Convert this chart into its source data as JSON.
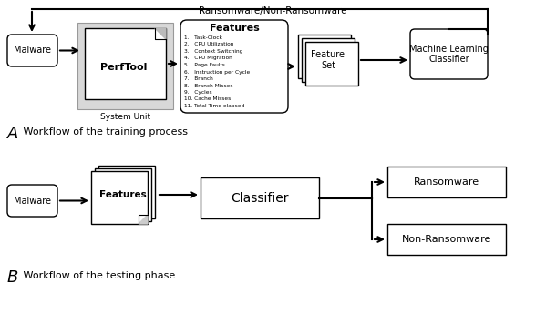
{
  "bg_color": "#ffffff",
  "top_label": "Ransomware/Non-Ransomware",
  "features_list": [
    "1.   Task-Clock",
    "2.   CPU Utilization",
    "3.   Context Switching",
    "4.   CPU Migration",
    "5.   Page Faults",
    "6.   Instruction per Cycle",
    "7.   Branch",
    "8.   Branch Misses",
    "9.   Cycles",
    "10. Cache Misses",
    "11. Total Time elapsed"
  ],
  "A_label_italic": "A",
  "A_label_rest": " Workflow of the training process",
  "B_label_italic": "B",
  "B_label_rest": " Workflow of the testing phase"
}
